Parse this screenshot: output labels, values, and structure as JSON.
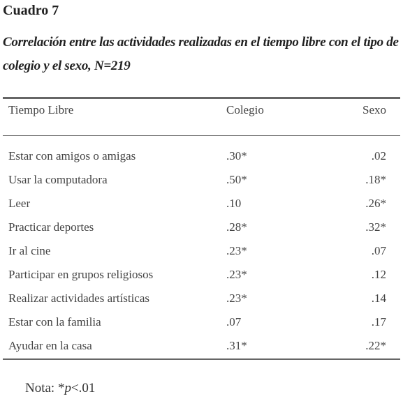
{
  "header": {
    "title": "Cuadro 7",
    "subtitle": "Correlación entre las actividades realizadas en el tiempo libre con el tipo de colegio y el sexo, N=219"
  },
  "table": {
    "columns": [
      "Tiempo Libre",
      "Colegio",
      "Sexo"
    ],
    "rows": [
      [
        "Estar con amigos o amigas",
        ".30*",
        ".02"
      ],
      [
        "Usar la computadora",
        ".50*",
        ".18*"
      ],
      [
        "Leer",
        ".10",
        ".26*"
      ],
      [
        "Practicar deportes",
        ".28*",
        ".32*"
      ],
      [
        "Ir al cine",
        ".23*",
        ".07"
      ],
      [
        "Participar en grupos religiosos",
        ".23*",
        ".12"
      ],
      [
        "Realizar actividades artísticas",
        ".23*",
        ".14"
      ],
      [
        "Estar con la familia",
        ".07",
        ".17"
      ],
      [
        "Ayudar en la casa",
        ".31*",
        ".22*"
      ]
    ]
  },
  "note": {
    "prefix": "Nota: *",
    "italic": "p",
    "suffix": "<.01"
  }
}
